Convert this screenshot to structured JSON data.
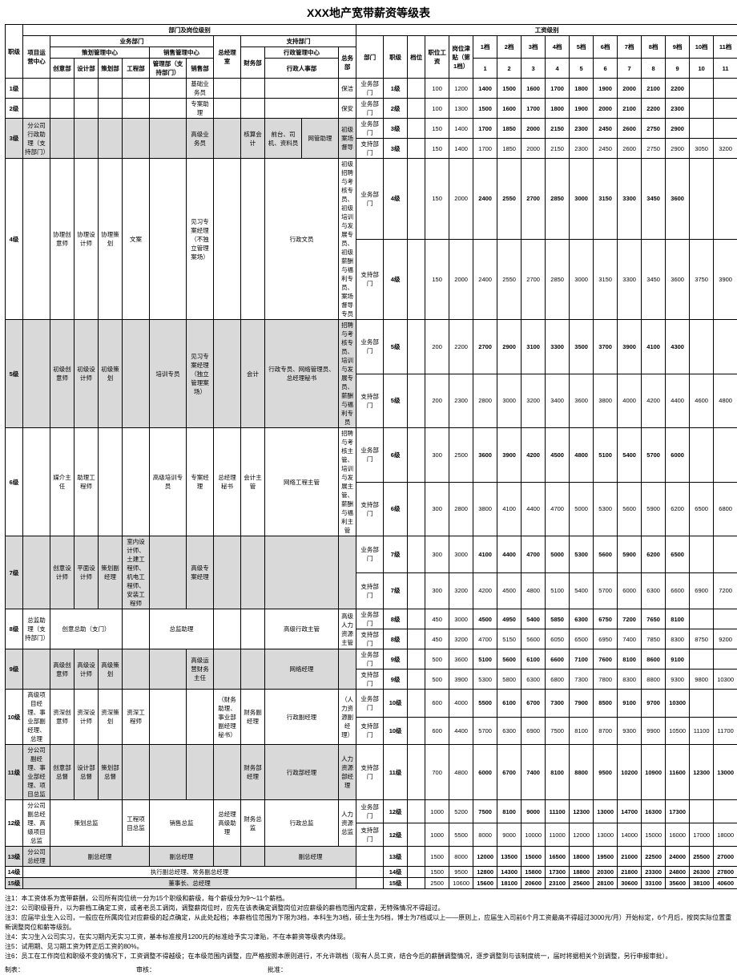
{
  "title": "XXX地产宽带薪资等级表",
  "sectionLeft": "部门及岗位级别",
  "sectionRight": "工资级别",
  "groupA": "业务部门",
  "groupB": "支持部门",
  "hdr": {
    "level": "职级",
    "pm": "项目运营中心",
    "planCenter": "策划管理中心",
    "planSub": [
      "创意部",
      "设计部",
      "策划部",
      "工程部"
    ],
    "salesCenter": "销售管理中心",
    "salesSub": [
      "管理部（支持部门）",
      "销售部"
    ],
    "gm": "总经理室",
    "fin": "财务部",
    "adminCenter": "行政管理中心",
    "adminSub": [
      "行政人事部",
      "总务部"
    ],
    "rightCols": [
      "部门",
      "职级",
      "档位",
      "职位工资",
      "岗位津贴（第1档）",
      "1档",
      "2档",
      "3档",
      "4档",
      "5档",
      "6档",
      "7档",
      "8档",
      "9档",
      "10档",
      "11档"
    ],
    "rightSub": [
      "1",
      "2",
      "3",
      "4",
      "5",
      "6",
      "7",
      "8",
      "9",
      "10",
      "11"
    ]
  },
  "rowLabels": [
    "1级",
    "2级",
    "3级",
    "4级",
    "5级",
    "6级",
    "7级",
    "8级",
    "9级",
    "10级",
    "11级",
    "12级",
    "13级",
    "14级",
    "15级"
  ],
  "grayLevels": [
    3,
    5,
    7,
    9,
    11,
    13,
    15
  ],
  "leftCells": {
    "r1": {
      "sales2": "基础业务员",
      "zongwu": "保洁"
    },
    "r2": {
      "sales2": "专案助理",
      "zongwu": "保安"
    },
    "r3": {
      "pm": "分公司行政助理（支持部门）",
      "sales2": "高级业务员",
      "fin": "核算会计",
      "admin1a": "前台、司机、资料员",
      "admin1b": "网管助理",
      "admin2": "初级案场督导"
    },
    "r4": {
      "plan1": "协理创意师",
      "plan2": "协理设计师",
      "plan3": "协理策划",
      "plan4": "文案",
      "sales2": "见习专案经理（不独立管理案场）",
      "admin1": "行政文员",
      "admin2": "初级招聘与考核专员、初级培训与发展专员、初级薪酬与福利专员、案场督导专员"
    },
    "r5": {
      "plan1": "初级创意师",
      "plan2": "初级设计师",
      "plan3": "初级策划",
      "sales1": "培训专员",
      "sales2": "见习专案经理（独立管理案场）",
      "fin": "会计",
      "admin1": "行政专员、网络管理员、总经理秘书",
      "admin2": "招聘与考核专员、培训与发展专员、薪酬与福利专员"
    },
    "r6": {
      "plan1": "媒介主任",
      "plan2": "助理工程师",
      "sales1": "高级培训专员",
      "sales2": "专案经理",
      "gm": "总经理秘书",
      "fin": "会计主管",
      "admin1": "网络工程主管",
      "admin2": "招聘与考核主管、培训与发展主管、薪酬与福利主管",
      "zongwu": "总务主管"
    },
    "r7": {
      "plan0": "创意设计师",
      "plan1": "平面设计师",
      "plan2": "策划副经理",
      "plan3": "室内设计师、土建工程师、机电工程师、安装工程师",
      "sales2": "高级专案经理"
    },
    "r8": {
      "pm": "总监助理（支持部门）",
      "plan0": "创意总助（支门）",
      "sales1": "总监助理",
      "admin1": "高级行政主管",
      "admin2": "高级人力资源主管"
    },
    "r9": {
      "plan1": "高级创意师",
      "plan2": "高级设计师",
      "plan3": "高级策划",
      "sales2": "高级运营财务主任",
      "admin1": "网络经理"
    },
    "r10": {
      "pm": "高级项目经理、事业部副经理、总理",
      "plan1": "资深创意师",
      "plan2": "资深设计师",
      "plan3": "资深策划",
      "plan4": "资深工程师",
      "gm": "（财务助理、事业部副经理秘书）",
      "fin": "财务副经理",
      "admin1": "行政副经理",
      "admin2": "（人力资源副经理）"
    },
    "r11": {
      "pm": "分公司副经理、事业部经理、项目总监",
      "plan1": "创意部总督",
      "plan2": "设计部总督",
      "plan3": "策划部总督",
      "fin": "财务部经理",
      "admin1": "行政部经理",
      "admin2": "人力资源部经理"
    },
    "r12": {
      "pm": "分公司副总经理、高级项目总监",
      "plan": "策划总监",
      "plan4": "工程项目总监",
      "sales": "销售总监",
      "gm": "总经理高级助理",
      "fin": "财务总监",
      "admin1": "行政总监",
      "admin2": "人力资源总监"
    },
    "r13": {
      "pm": "分公司总经理",
      "plan": "副总经理",
      "sales": "副总经理",
      "admin": "副总经理"
    },
    "r14": {
      "all": "执行副总经理、常务副总经理"
    },
    "r15": {
      "all": "董事长、总经理"
    }
  },
  "salary": [
    {
      "dept": "业务部门",
      "lvl": "1级",
      "base": 100,
      "allow": 1200,
      "v": [
        1400,
        1500,
        1600,
        1700,
        1800,
        1900,
        2000,
        2100,
        2200,
        "",
        ""
      ]
    },
    {
      "dept": "业务部门",
      "lvl": "2级",
      "base": 100,
      "allow": 1300,
      "v": [
        1500,
        1600,
        1700,
        1800,
        1900,
        2000,
        2100,
        2200,
        2300,
        "",
        ""
      ]
    },
    {
      "dept": "业务部门",
      "lvl": "3级",
      "base": 150,
      "allow": 1400,
      "v": [
        1700,
        1850,
        2000,
        2150,
        2300,
        2450,
        2600,
        2750,
        2900,
        "",
        ""
      ]
    },
    {
      "dept": "支持部门",
      "lvl": "3级",
      "base": 150,
      "allow": 1400,
      "v": [
        1700,
        1850,
        2000,
        2150,
        2300,
        2450,
        2600,
        2750,
        2900,
        3050,
        3200
      ]
    },
    {
      "dept": "业务部门",
      "lvl": "4级",
      "base": 150,
      "allow": 2000,
      "v": [
        2400,
        2550,
        2700,
        2850,
        3000,
        3150,
        3300,
        3450,
        3600,
        "",
        ""
      ]
    },
    {
      "dept": "支持部门",
      "lvl": "4级",
      "base": 150,
      "allow": 2000,
      "v": [
        2400,
        2550,
        2700,
        2850,
        3000,
        3150,
        3300,
        3450,
        3600,
        3750,
        3900
      ]
    },
    {
      "dept": "业务部门",
      "lvl": "5级",
      "base": 200,
      "allow": 2200,
      "v": [
        2700,
        2900,
        3100,
        3300,
        3500,
        3700,
        3900,
        4100,
        4300,
        "",
        ""
      ]
    },
    {
      "dept": "支持部门",
      "lvl": "5级",
      "base": 200,
      "allow": 2300,
      "v": [
        2800,
        3000,
        3200,
        3400,
        3600,
        3800,
        4000,
        4200,
        4400,
        4600,
        4800
      ]
    },
    {
      "dept": "业务部门",
      "lvl": "6级",
      "base": 300,
      "allow": 2500,
      "v": [
        3600,
        3900,
        4200,
        4500,
        4800,
        5100,
        5400,
        5700,
        6000,
        "",
        ""
      ]
    },
    {
      "dept": "支持部门",
      "lvl": "6级",
      "base": 300,
      "allow": 2800,
      "v": [
        3800,
        4100,
        4400,
        4700,
        5000,
        5300,
        5600,
        5900,
        6200,
        6500,
        6800
      ]
    },
    {
      "dept": "业务部门",
      "lvl": "7级",
      "base": 300,
      "allow": 3000,
      "v": [
        4100,
        4400,
        4700,
        5000,
        5300,
        5600,
        5900,
        6200,
        6500,
        "",
        ""
      ]
    },
    {
      "dept": "支持部门",
      "lvl": "7级",
      "base": 300,
      "allow": 3200,
      "v": [
        4200,
        4500,
        4800,
        5100,
        5400,
        5700,
        6000,
        6300,
        6600,
        6900,
        7200
      ]
    },
    {
      "dept": "业务部门",
      "lvl": "8级",
      "base": 450,
      "allow": 3000,
      "v": [
        4500,
        4950,
        5400,
        5850,
        6300,
        6750,
        7200,
        7650,
        8100,
        "",
        ""
      ]
    },
    {
      "dept": "支持部门",
      "lvl": "8级",
      "base": 450,
      "allow": 3200,
      "v": [
        4700,
        5150,
        5600,
        6050,
        6500,
        6950,
        7400,
        7850,
        8300,
        8750,
        9200
      ]
    },
    {
      "dept": "业务部门",
      "lvl": "9级",
      "base": 500,
      "allow": 3600,
      "v": [
        5100,
        5600,
        6100,
        6600,
        7100,
        7600,
        8100,
        8600,
        9100,
        "",
        ""
      ]
    },
    {
      "dept": "支持部门",
      "lvl": "9级",
      "base": 500,
      "allow": 3900,
      "v": [
        5300,
        5800,
        6300,
        6800,
        7300,
        7800,
        8300,
        8800,
        9300,
        9800,
        10300
      ]
    },
    {
      "dept": "业务部门",
      "lvl": "10级",
      "base": 600,
      "allow": 4000,
      "v": [
        5500,
        6100,
        6700,
        7300,
        7900,
        8500,
        9100,
        9700,
        10300,
        "",
        ""
      ]
    },
    {
      "dept": "支持部门",
      "lvl": "10级",
      "base": 600,
      "allow": 4400,
      "v": [
        5700,
        6300,
        6900,
        7500,
        8100,
        8700,
        9300,
        9900,
        10500,
        11100,
        11700
      ]
    },
    {
      "dept": "支持部门",
      "lvl": "11级",
      "base": 700,
      "allow": 4800,
      "v": [
        6000,
        6700,
        7400,
        8100,
        8800,
        9500,
        10200,
        10900,
        11600,
        12300,
        13000
      ]
    },
    {
      "dept": "业务部门",
      "lvl": "12级",
      "base": 1000,
      "allow": 5200,
      "v": [
        7500,
        8100,
        9000,
        11100,
        12300,
        13000,
        14700,
        16300,
        17300,
        "",
        ""
      ]
    },
    {
      "dept": "支持部门",
      "lvl": "12级",
      "base": 1000,
      "allow": 5500,
      "v": [
        8000,
        9000,
        10000,
        11000,
        12000,
        13000,
        14000,
        15000,
        16000,
        17000,
        18000
      ]
    },
    {
      "dept": "",
      "lvl": "13级",
      "base": 1500,
      "allow": 8000,
      "v": [
        12000,
        13500,
        15000,
        16500,
        18000,
        19500,
        21000,
        22500,
        24000,
        25500,
        27000
      ]
    },
    {
      "dept": "",
      "lvl": "14级",
      "base": 1500,
      "allow": 9500,
      "v": [
        12800,
        14300,
        15800,
        17300,
        18800,
        20300,
        21800,
        23300,
        24800,
        26300,
        27800
      ]
    },
    {
      "dept": "",
      "lvl": "15级",
      "base": 2500,
      "allow": 10600,
      "v": [
        15600,
        18100,
        20600,
        23100,
        25600,
        28100,
        30600,
        33100,
        35600,
        38100,
        40600
      ]
    }
  ],
  "notes": [
    "注1：本工资体系为宽带薪酬，公司所有岗位统一分为15个职级和薪级，每个薪级分为9～11个薪档。",
    "注2：公司职级晋升，以为薪档工确定工资，或者老员工调岗，调整薪岗位时，应先在该表确定调整岗位对应薪级的薪档范围内定薪，无特殊情况不得超过。",
    "注3：应届毕业生入公司，一般应在所属岗位对应薪级的起点确定，从此处起档；本薪档位范围为下限为3档，本科生为3档，硕士生为5档，博士为7档或以上——原则上，应届生入司前6个月工资最高不得超过3000元/月）开始标定，6个月后，按岗实际位置重新调整岗位和薪等级别。",
    "注4：实习生入公司实习，在实习期内无实习工资，基本标准按月1200元的标准给予实习津贴，不在本薪资等级表内体现。",
    "注5：试用期、见习期工资为转正后工资的80%。",
    "注6：员工在工作岗位和职级不变的情况下，工资调整不得越级；在本级范围内调整，应严格按照本原则进行，不允许跳档（现有人员工资，结合今后的薪酬调整情况，逐步调整到与该制度统一，届时将据相关个别调整，另行申报审批）。"
  ],
  "footer": [
    "制表：",
    "审核：",
    "批准："
  ]
}
